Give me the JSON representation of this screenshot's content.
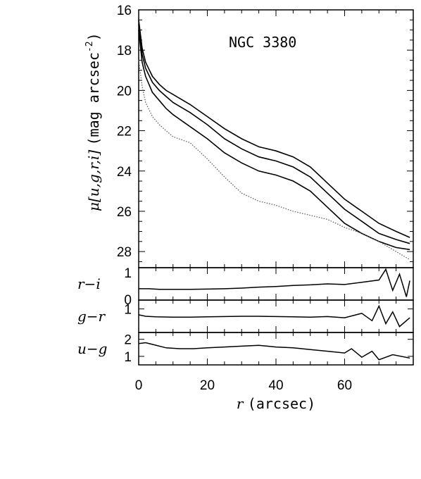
{
  "chart_data": [
    {
      "panel": "main",
      "type": "line",
      "annotation": "NGC 3380",
      "ylabel_parts": {
        "mu": "μ",
        "bands": "[u,g,r,i]",
        "units": "(mag arcsec",
        "exp": "-2",
        "close": ")"
      },
      "xlim": [
        0,
        80
      ],
      "ylim": [
        16,
        28.8
      ],
      "y_inverted": true,
      "yticks": [
        "16",
        "18",
        "20",
        "22",
        "24",
        "26",
        "28"
      ],
      "x": [
        0,
        1,
        2,
        4,
        6,
        8,
        10,
        15,
        20,
        25,
        30,
        35,
        40,
        45,
        50,
        55,
        60,
        65,
        70,
        75,
        79
      ],
      "series": [
        {
          "values": [
            16.5,
            17.9,
            18.6,
            19.3,
            19.7,
            20.0,
            20.2,
            20.7,
            21.3,
            21.9,
            22.4,
            22.8,
            23.0,
            23.3,
            23.8,
            24.6,
            25.4,
            26.0,
            26.6,
            27.0,
            27.3
          ]
        },
        {
          "values": [
            16.7,
            18.2,
            18.9,
            19.6,
            20.0,
            20.3,
            20.6,
            21.1,
            21.7,
            22.4,
            22.9,
            23.3,
            23.5,
            23.8,
            24.3,
            25.1,
            25.9,
            26.5,
            27.1,
            27.4,
            27.6
          ]
        },
        {
          "values": [
            17.0,
            18.6,
            19.3,
            20.1,
            20.5,
            20.9,
            21.2,
            21.8,
            22.4,
            23.1,
            23.6,
            24.0,
            24.2,
            24.5,
            25.0,
            25.8,
            26.6,
            27.1,
            27.5,
            27.8,
            27.9
          ]
        },
        {
          "dotted": true,
          "values": [
            18.5,
            19.8,
            20.6,
            21.3,
            21.7,
            22.0,
            22.3,
            22.6,
            23.4,
            24.3,
            25.1,
            25.5,
            25.7,
            26.0,
            26.2,
            26.4,
            26.8,
            27.1,
            27.5,
            28.0,
            28.4
          ]
        }
      ]
    },
    {
      "panel": "r-i",
      "type": "line",
      "label": "r−i",
      "ylim": [
        0,
        1
      ],
      "yticks": [
        "1",
        "0"
      ],
      "x": [
        0,
        3,
        6,
        10,
        15,
        20,
        25,
        30,
        35,
        40,
        45,
        50,
        55,
        60,
        65,
        70,
        72,
        74,
        76,
        78,
        79
      ],
      "values": [
        0.35,
        0.35,
        0.33,
        0.33,
        0.33,
        0.34,
        0.35,
        0.37,
        0.4,
        0.42,
        0.45,
        0.47,
        0.5,
        0.48,
        0.55,
        0.62,
        0.95,
        0.3,
        0.8,
        0.1,
        0.6
      ]
    },
    {
      "panel": "g-r",
      "type": "line",
      "label": "g−r",
      "ylim": [
        0.2,
        1.3
      ],
      "yticks": [
        "1"
      ],
      "x": [
        0,
        2,
        5,
        10,
        15,
        20,
        25,
        30,
        35,
        40,
        45,
        50,
        55,
        60,
        65,
        68,
        70,
        72,
        74,
        76,
        79
      ],
      "values": [
        0.8,
        0.75,
        0.73,
        0.72,
        0.72,
        0.73,
        0.74,
        0.75,
        0.75,
        0.74,
        0.73,
        0.72,
        0.74,
        0.7,
        0.85,
        0.6,
        1.1,
        0.5,
        0.9,
        0.4,
        0.7
      ]
    },
    {
      "panel": "u-g",
      "type": "line",
      "label": "u−g",
      "ylim": [
        0.5,
        2.4
      ],
      "yticks": [
        "2",
        "1"
      ],
      "x": [
        0,
        2,
        4,
        8,
        12,
        16,
        20,
        25,
        30,
        35,
        40,
        45,
        50,
        55,
        60,
        62,
        65,
        68,
        70,
        74,
        79
      ],
      "values": [
        1.75,
        1.8,
        1.7,
        1.5,
        1.45,
        1.45,
        1.5,
        1.55,
        1.6,
        1.65,
        1.55,
        1.5,
        1.4,
        1.3,
        1.2,
        1.45,
        0.95,
        1.3,
        0.8,
        1.1,
        0.9
      ]
    }
  ],
  "xaxis": {
    "xlim": [
      0,
      80
    ],
    "xticks": [
      "0",
      "20",
      "40",
      "60"
    ],
    "label_italic": "r",
    "label_rest": "(arcsec)"
  }
}
